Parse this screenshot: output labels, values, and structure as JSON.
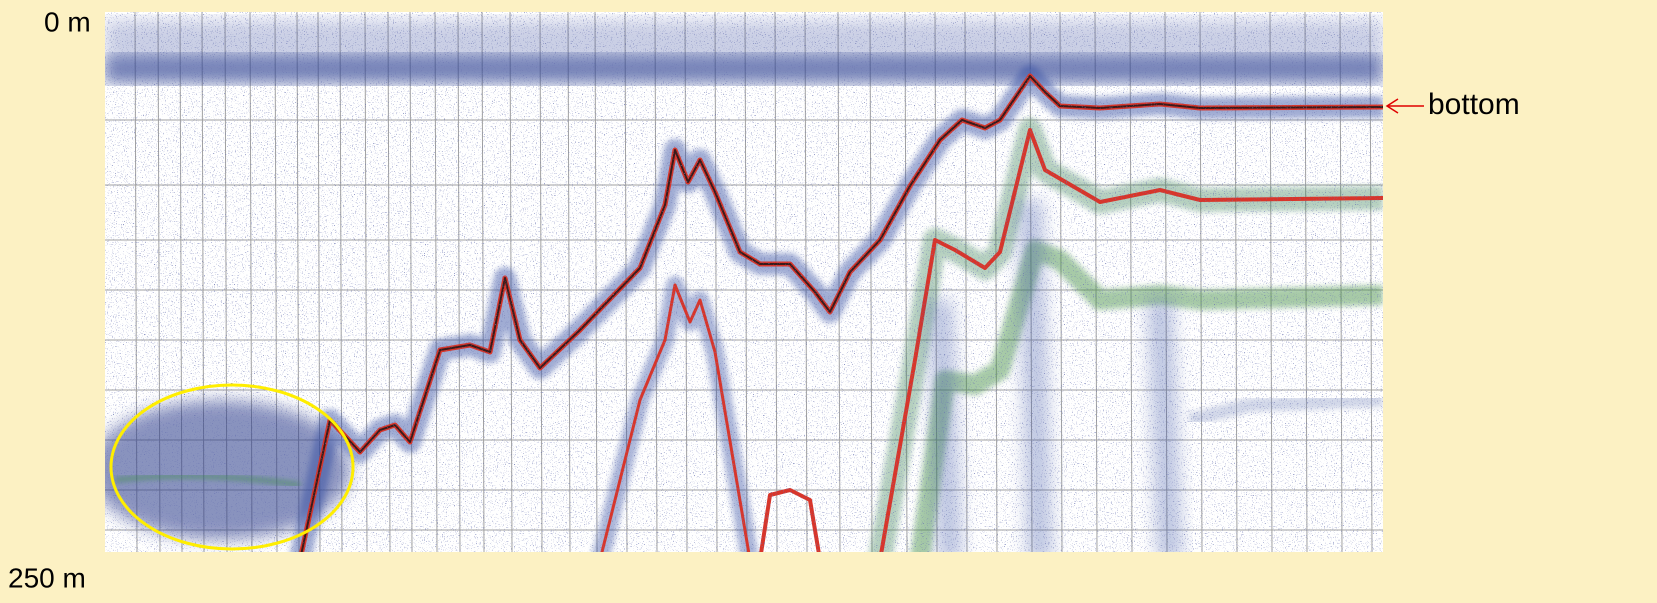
{
  "labels": {
    "depth_top": "0 m",
    "depth_bottom": "250 m"
  },
  "annotation": {
    "text": "bottom"
  }
}
